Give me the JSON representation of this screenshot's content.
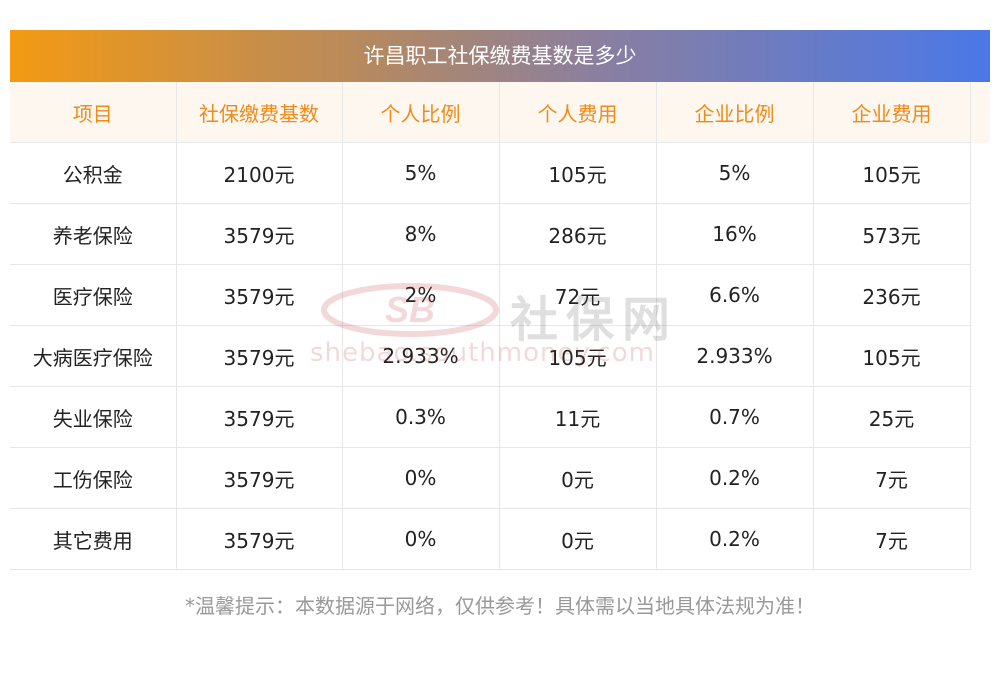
{
  "title": "许昌职工社保缴费基数是多少",
  "columns": [
    "项目",
    "社保缴费基数",
    "个人比例",
    "个人费用",
    "企业比例",
    "企业费用"
  ],
  "rows": [
    [
      "公积金",
      "2100元",
      "5%",
      "105元",
      "5%",
      "105元"
    ],
    [
      "养老保险",
      "3579元",
      "8%",
      "286元",
      "16%",
      "573元"
    ],
    [
      "医疗保险",
      "3579元",
      "2%",
      "72元",
      "6.6%",
      "236元"
    ],
    [
      "大病医疗保险",
      "3579元",
      "2.933%",
      "105元",
      "2.933%",
      "105元"
    ],
    [
      "失业保险",
      "3579元",
      "0.3%",
      "11元",
      "0.7%",
      "25元"
    ],
    [
      "工伤保险",
      "3579元",
      "0%",
      "0元",
      "0.2%",
      "7元"
    ],
    [
      "其它费用",
      "3579元",
      "0%",
      "0元",
      "0.2%",
      "7元"
    ]
  ],
  "watermark": {
    "logo_text": "SB",
    "cn_text": "社保网",
    "url_text": "shebao.southmoney.com"
  },
  "footer": "*温馨提示：本数据源于网络，仅供参考！具体需以当地具体法规为准！",
  "colors": {
    "title_gradient_start": "#f39a13",
    "title_gradient_end": "#4a78e8",
    "header_text": "#f08a18",
    "header_bg": "#fdf7f0"
  }
}
